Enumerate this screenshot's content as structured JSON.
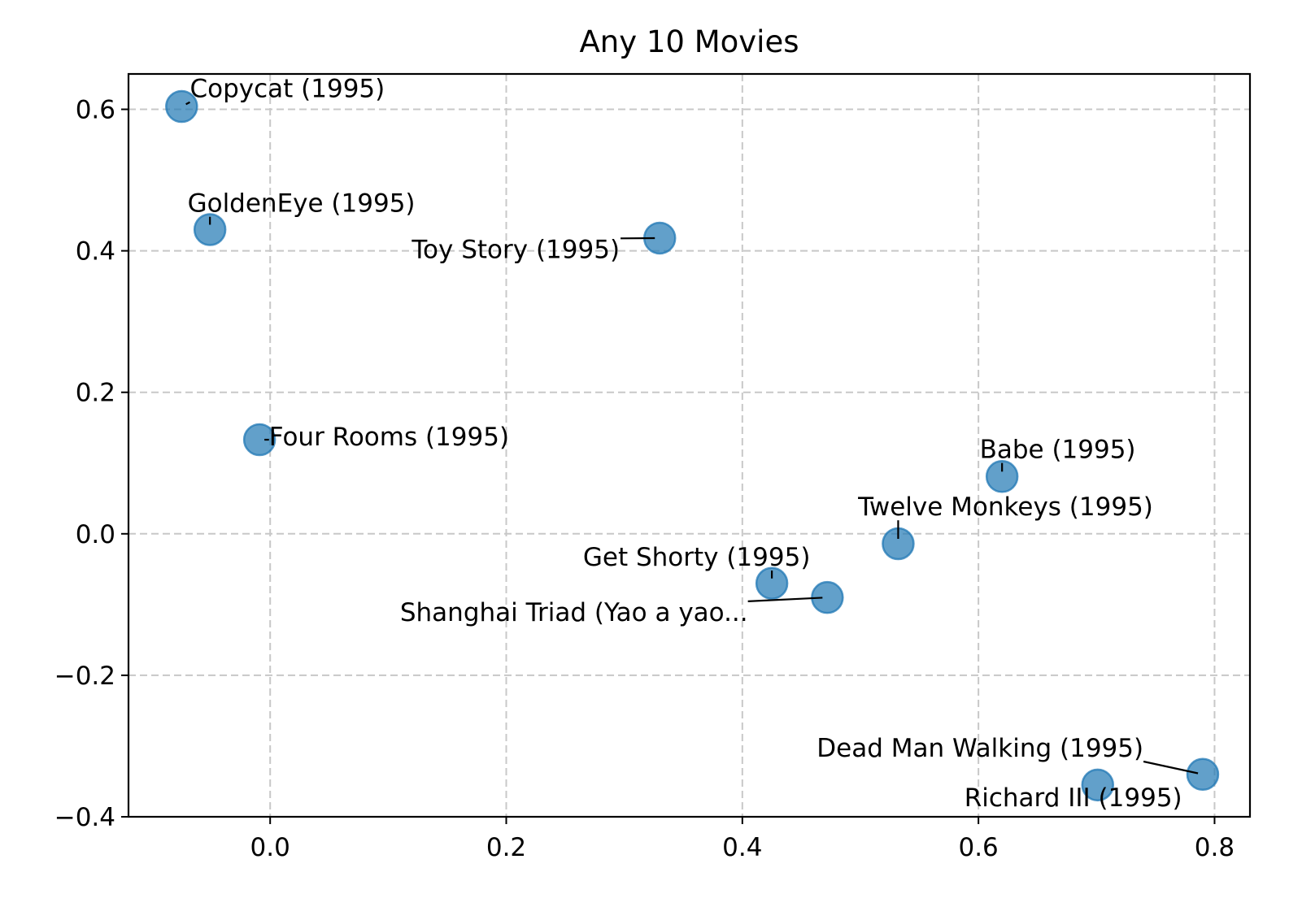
{
  "chart_data": {
    "type": "scatter",
    "title": "Any 10 Movies",
    "xlabel": "",
    "ylabel": "",
    "xlim": [
      -0.12,
      0.83
    ],
    "ylim": [
      -0.4,
      0.65
    ],
    "x_ticks": [
      0.0,
      0.2,
      0.4,
      0.6,
      0.8
    ],
    "x_tick_labels": [
      "0.0",
      "0.2",
      "0.4",
      "0.6",
      "0.8"
    ],
    "y_ticks": [
      -0.4,
      -0.2,
      0.0,
      0.2,
      0.4,
      0.6
    ],
    "y_tick_labels": [
      "−0.4",
      "−0.2",
      "0.0",
      "0.2",
      "0.4",
      "0.6"
    ],
    "grid": true,
    "marker_color": "#1f77b4",
    "points": [
      {
        "label": "Toy Story (1995)",
        "x": 0.33,
        "y": 0.418,
        "label_x": 0.12,
        "label_y": 0.39,
        "anchor": "start"
      },
      {
        "label": "GoldenEye (1995)",
        "x": -0.051,
        "y": 0.43,
        "label_x": -0.07,
        "label_y": 0.455,
        "anchor": "start"
      },
      {
        "label": "Four Rooms (1995)",
        "x": -0.009,
        "y": 0.133,
        "label_x": -0.001,
        "label_y": 0.125,
        "anchor": "start"
      },
      {
        "label": "Get Shorty (1995)",
        "x": 0.425,
        "y": -0.07,
        "label_x": 0.265,
        "label_y": -0.045,
        "anchor": "start"
      },
      {
        "label": "Copycat (1995)",
        "x": -0.075,
        "y": 0.604,
        "label_x": -0.068,
        "label_y": 0.617,
        "anchor": "start"
      },
      {
        "label": "Shanghai Triad (Yao a yao...",
        "x": 0.472,
        "y": -0.09,
        "label_x": 0.11,
        "label_y": -0.123,
        "anchor": "start"
      },
      {
        "label": "Twelve Monkeys (1995)",
        "x": 0.532,
        "y": -0.014,
        "label_x": 0.498,
        "label_y": 0.026,
        "anchor": "start"
      },
      {
        "label": "Babe (1995)",
        "x": 0.62,
        "y": 0.081,
        "label_x": 0.601,
        "label_y": 0.107,
        "anchor": "start"
      },
      {
        "label": "Dead Man Walking (1995)",
        "x": 0.79,
        "y": -0.34,
        "label_x": 0.463,
        "label_y": -0.315,
        "anchor": "start"
      },
      {
        "label": "Richard III (1995)",
        "x": 0.701,
        "y": -0.355,
        "label_x": 0.588,
        "label_y": -0.385,
        "anchor": "start"
      }
    ]
  }
}
